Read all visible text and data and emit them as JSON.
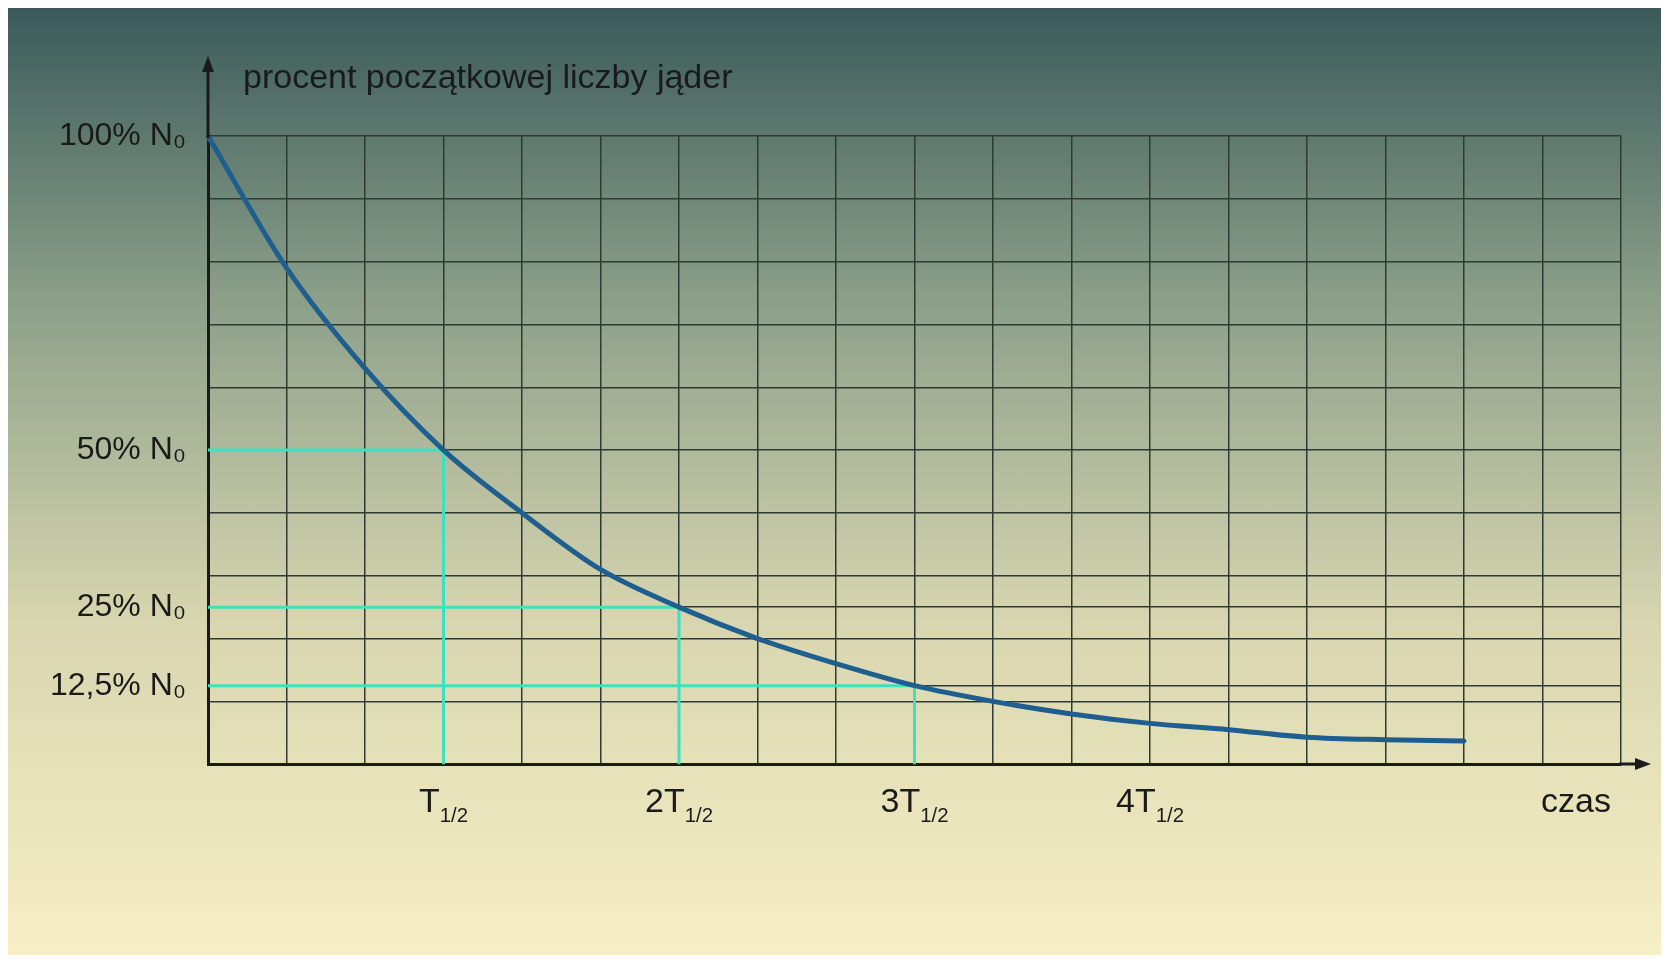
{
  "chart_data": {
    "type": "line",
    "ylabel": "procent początkowej liczby jąder",
    "xlabel": "czas",
    "categories": [
      null,
      null,
      null,
      "T$_{1/2}$",
      null,
      null,
      "2T$_{1/2}$",
      null,
      null,
      "3T$_{1/2}$",
      null,
      null,
      "4T$_{1/2}$",
      null,
      null,
      null,
      null,
      null,
      null
    ],
    "ylim": [
      0,
      100
    ],
    "yticks": [
      {
        "value": 0,
        "label": null
      },
      {
        "value": 10,
        "label": null
      },
      {
        "value": 12.5,
        "label": "12,5% N₀"
      },
      {
        "value": 20,
        "label": null
      },
      {
        "value": 25,
        "label": "25% N₀"
      },
      {
        "value": 30,
        "label": null
      },
      {
        "value": 40,
        "label": null
      },
      {
        "value": 50,
        "label": "50% N₀"
      },
      {
        "value": 60,
        "label": null
      },
      {
        "value": 70,
        "label": null
      },
      {
        "value": 80,
        "label": null
      },
      {
        "value": 90,
        "label": null
      },
      {
        "value": 100,
        "label": "100% N₀"
      }
    ],
    "grid": true,
    "series": [
      {
        "color": "#1f5f8f",
        "values": [
          100,
          79,
          63,
          50,
          40,
          31,
          25,
          20,
          16,
          12.5,
          10,
          8,
          6.5,
          5.5,
          4.3,
          3.9,
          3.7,
          null,
          null
        ]
      }
    ],
    "ref_lines": [
      {
        "axis": "y",
        "value": 50,
        "color": "#3ee0c0"
      },
      {
        "axis": "y",
        "value": 25,
        "color": "#3ee0c0"
      },
      {
        "axis": "y",
        "value": 12.5,
        "color": "#3ee0c0"
      }
    ]
  }
}
